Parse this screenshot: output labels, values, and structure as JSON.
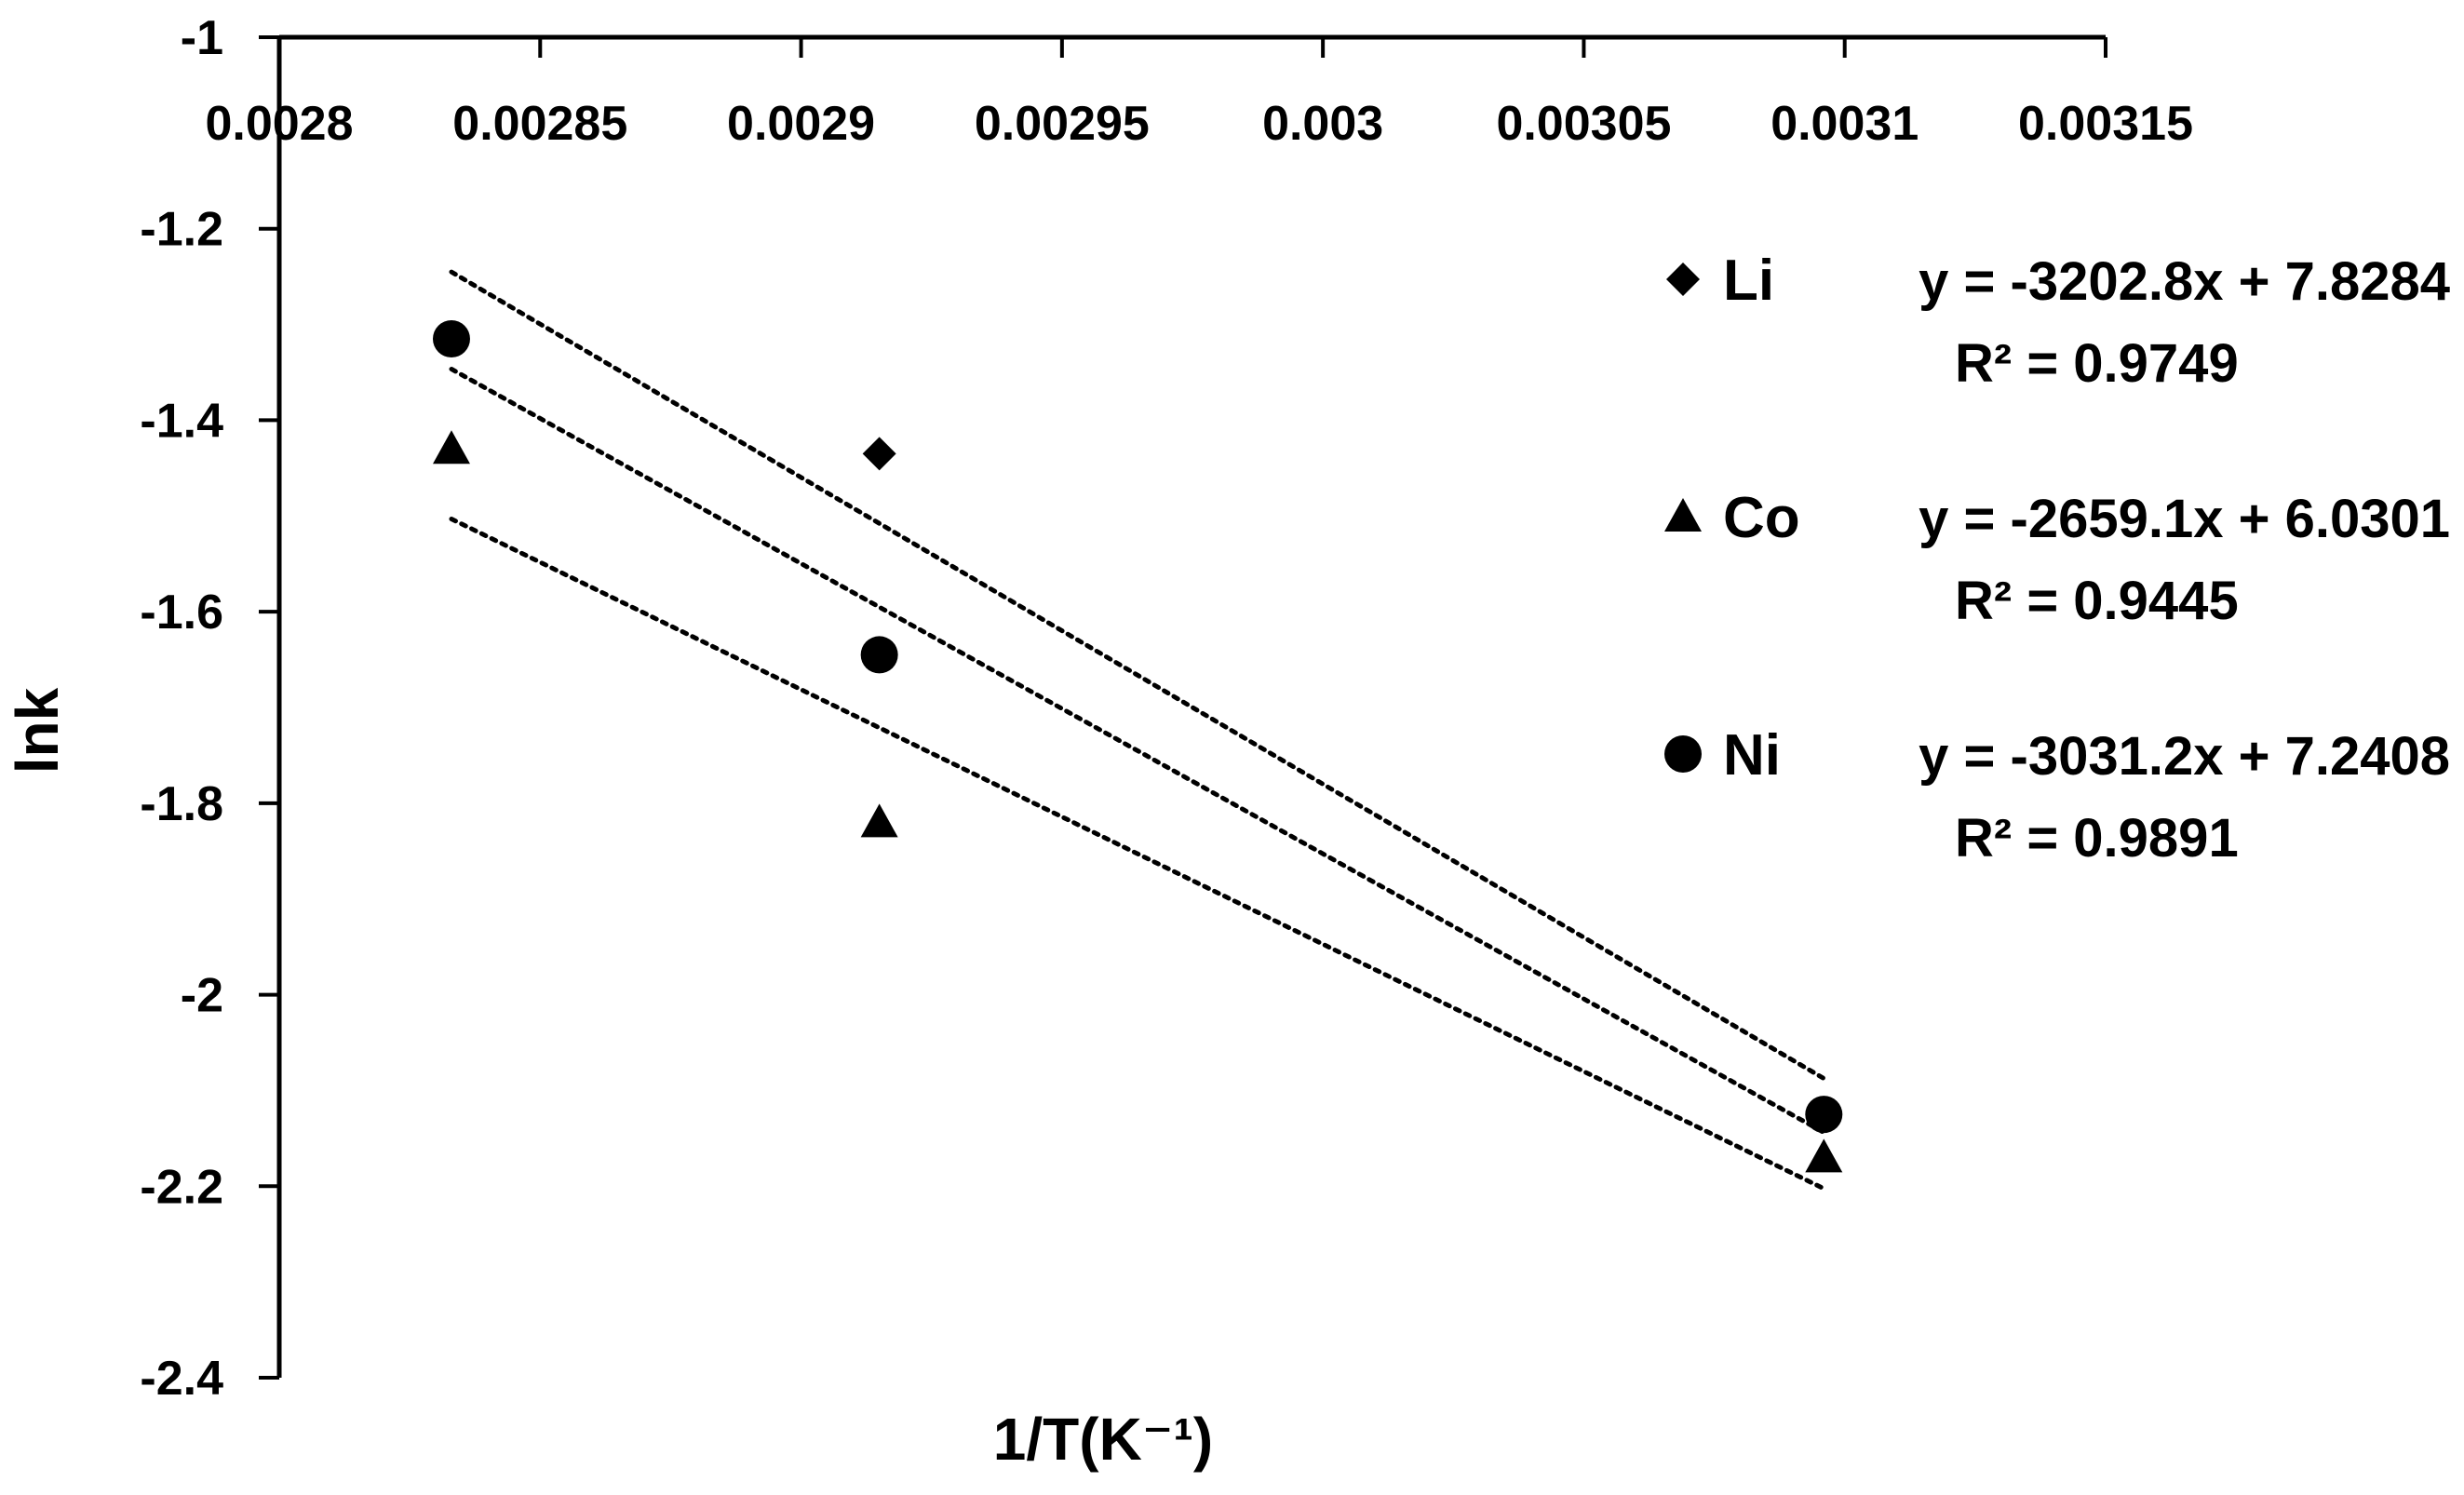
{
  "chart_data": {
    "type": "scatter",
    "title": "",
    "xlabel": "1/T(K⁻¹)",
    "ylabel": "lnk",
    "xlim": [
      0.0028,
      0.00315
    ],
    "ylim": [
      -2.4,
      -1
    ],
    "x_ticks": [
      "0.0028",
      "0.00285",
      "0.0029",
      "0.00295",
      "0.003",
      "0.00305",
      "0.0031",
      "0.00315"
    ],
    "y_ticks": [
      "-1",
      "-1.2",
      "-1.4",
      "-1.6",
      "-1.8",
      "-2",
      "-2.2",
      "-2.4"
    ],
    "grid": false,
    "legend_position": "right",
    "series": [
      {
        "name": "Li",
        "marker": "diamond",
        "x": [
          0.002833,
          0.002915,
          0.003096
        ],
        "y": [
          -1.315,
          -1.435,
          -2.125
        ],
        "trendline": {
          "slope": -3202.8,
          "intercept": 7.8284
        },
        "equation": "y = -3202.8x + 7.8284",
        "r2": "R² = 0.9749"
      },
      {
        "name": "Co",
        "marker": "triangle",
        "x": [
          0.002833,
          0.002915,
          0.003096
        ],
        "y": [
          -1.43,
          -1.82,
          -2.17
        ],
        "trendline": {
          "slope": -2659.1,
          "intercept": 6.0301
        },
        "equation": "y = -2659.1x + 6.0301",
        "r2": "R² = 0.9445"
      },
      {
        "name": "Ni",
        "marker": "circle",
        "x": [
          0.002833,
          0.002915,
          0.003096
        ],
        "y": [
          -1.315,
          -1.645,
          -2.125
        ],
        "trendline": {
          "slope": -3031.2,
          "intercept": 7.2408
        },
        "equation": "y = -3031.2x + 7.2408",
        "r2": "R² = 0.9891"
      }
    ]
  }
}
